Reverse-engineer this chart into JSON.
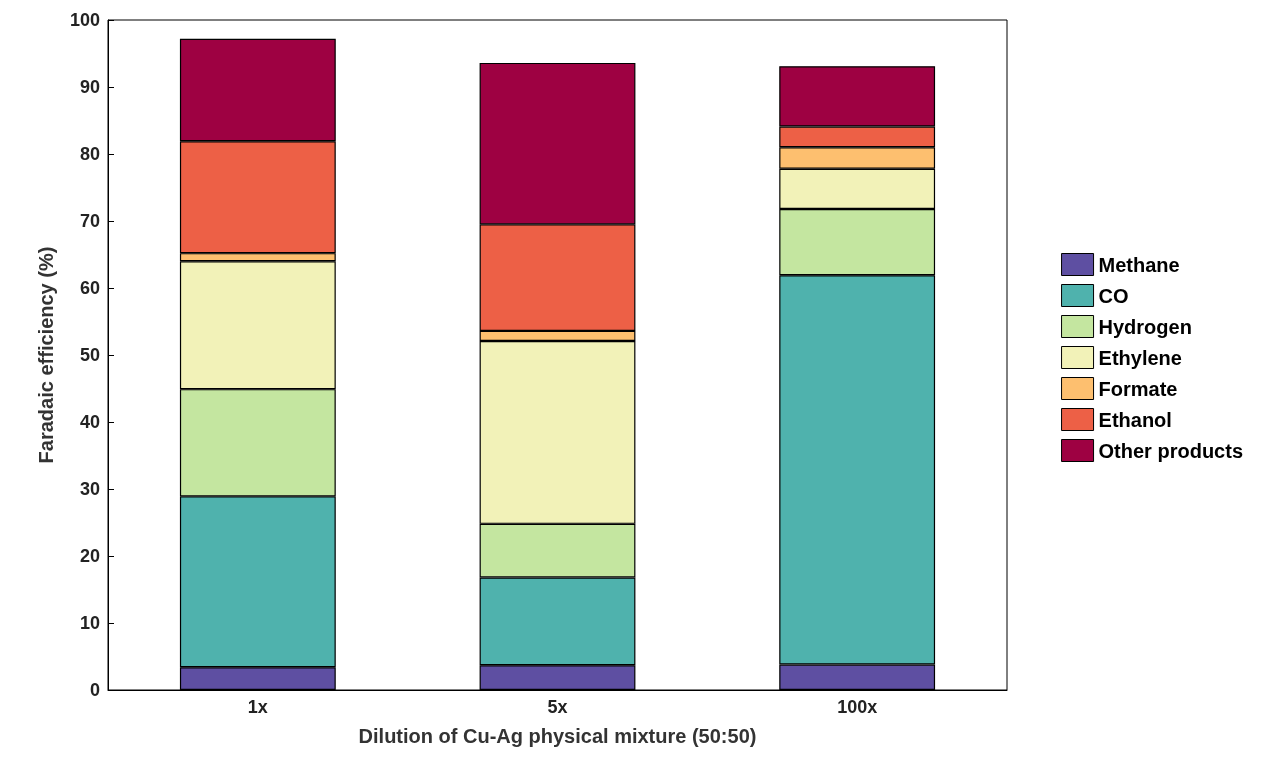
{
  "chart_data": {
    "type": "bar",
    "stacked": true,
    "xlabel": "Dilution of Cu-Ag physical mixture (50:50)",
    "ylabel": "Faradaic efficiency (%)",
    "categories": [
      "1x",
      "5x",
      "100x"
    ],
    "series": [
      {
        "name": "Methane",
        "color": "#5e4fa2",
        "values": [
          3.4,
          3.7,
          3.8
        ]
      },
      {
        "name": "CO",
        "color": "#4fb2ad",
        "values": [
          25.5,
          13.1,
          58.1
        ]
      },
      {
        "name": "Hydrogen",
        "color": "#c4e6a0",
        "values": [
          16.0,
          8.0,
          9.9
        ]
      },
      {
        "name": "Ethylene",
        "color": "#f2f2b8",
        "values": [
          19.1,
          27.3,
          6.0
        ]
      },
      {
        "name": "Formate",
        "color": "#fdbf6f",
        "values": [
          1.2,
          1.5,
          3.2
        ]
      },
      {
        "name": "Ethanol",
        "color": "#ed6046",
        "values": [
          16.7,
          15.9,
          3.1
        ]
      },
      {
        "name": "Other products",
        "color": "#9e0142",
        "values": [
          15.3,
          24.1,
          9.0
        ]
      }
    ],
    "ylim": [
      0,
      100
    ],
    "yticks": [
      0,
      10,
      20,
      30,
      40,
      50,
      60,
      70,
      80,
      90,
      100
    ],
    "grid": false,
    "legend": "right"
  }
}
